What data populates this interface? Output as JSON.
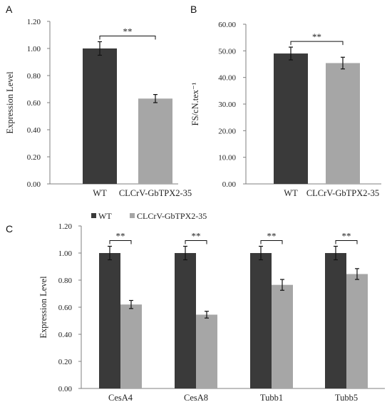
{
  "colors": {
    "wt": "#3a3a3a",
    "treated": "#a6a6a6",
    "axis": "#7f7f7f",
    "error": "#111111"
  },
  "chart_data": [
    {
      "panel": "A",
      "type": "bar",
      "title": "",
      "xlabel": "",
      "ylabel": "Expression Level",
      "ylim": [
        0,
        1.2
      ],
      "yticks": [
        "0.00",
        "0.20",
        "0.40",
        "0.60",
        "0.80",
        "1.00",
        "1.20"
      ],
      "categories": [
        "WT",
        "CLCrV-GbTPX2-35"
      ],
      "values": [
        1.0,
        0.63
      ],
      "errors": [
        0.05,
        0.03
      ],
      "significance": "**",
      "legend": "none"
    },
    {
      "panel": "B",
      "type": "bar",
      "title": "",
      "xlabel": "",
      "ylabel": "FS/cN.tex⁻¹",
      "ylim": [
        0,
        60
      ],
      "yticks": [
        "0.00",
        "10.00",
        "20.00",
        "30.00",
        "40.00",
        "50.00",
        "60.00"
      ],
      "categories": [
        "WT",
        "CLCrV-GbTPX2-35"
      ],
      "values": [
        49.0,
        45.4
      ],
      "errors": [
        2.4,
        2.2
      ],
      "significance": "**",
      "legend": "none"
    },
    {
      "panel": "C",
      "type": "bar",
      "title": "",
      "xlabel": "",
      "ylabel": "Expression Level",
      "ylim": [
        0,
        1.2
      ],
      "yticks": [
        "0.00",
        "0.20",
        "0.40",
        "0.60",
        "0.80",
        "1.00",
        "1.20"
      ],
      "categories": [
        "CesA4",
        "CesA8",
        "Tubb1",
        "Tubb5"
      ],
      "series": [
        {
          "name": "WT",
          "values": [
            1.0,
            1.0,
            1.0,
            1.0
          ],
          "errors": [
            0.05,
            0.05,
            0.05,
            0.05
          ]
        },
        {
          "name": "CLCrV-GbTPX2-35",
          "values": [
            0.62,
            0.545,
            0.765,
            0.845
          ],
          "errors": [
            0.03,
            0.025,
            0.04,
            0.04
          ]
        }
      ],
      "significance": [
        "**",
        "**",
        "**",
        "**"
      ],
      "legend": "top-left"
    }
  ]
}
